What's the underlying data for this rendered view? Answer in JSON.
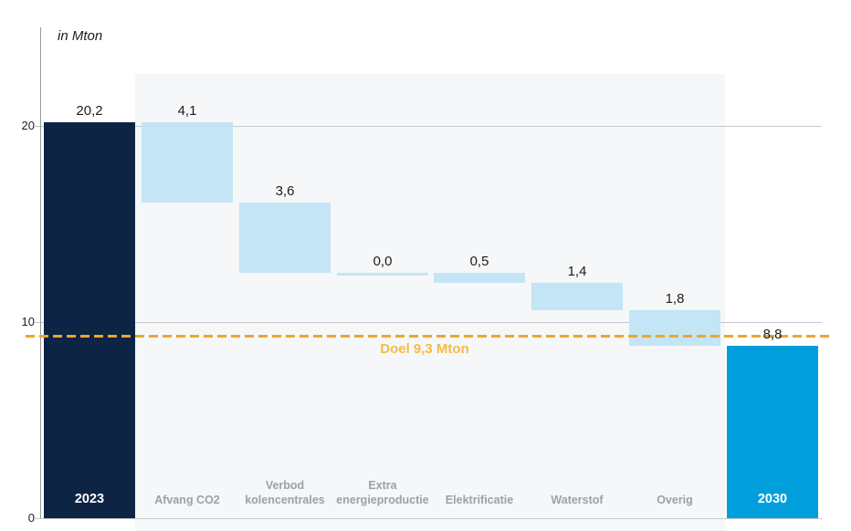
{
  "chart_data": {
    "type": "waterfall",
    "unit_label": "in Mton",
    "y_axis": {
      "range": [
        0,
        25
      ],
      "ticks": [
        {
          "value": 20,
          "label": "20"
        },
        {
          "value": 10,
          "label": "10"
        },
        {
          "value": 0,
          "label": "0"
        }
      ]
    },
    "columns": [
      {
        "category": "2023",
        "role": "start",
        "value": 20.2,
        "display_value": "20,2"
      },
      {
        "category": "Afvang CO2",
        "role": "decrease",
        "delta": 4.1,
        "display_value": "4,1"
      },
      {
        "category": "Verbod kolencentrales",
        "role": "decrease",
        "delta": 3.6,
        "display_value": "3,6"
      },
      {
        "category": "Extra energieproductie",
        "role": "decrease",
        "delta": 0.0,
        "display_value": "0,0"
      },
      {
        "category": "Elektrificatie",
        "role": "decrease",
        "delta": 0.5,
        "display_value": "0,5"
      },
      {
        "category": "Waterstof",
        "role": "decrease",
        "delta": 1.4,
        "display_value": "1,4"
      },
      {
        "category": "Overig",
        "role": "decrease",
        "delta": 1.8,
        "display_value": "1,8"
      },
      {
        "category": "2030",
        "role": "end",
        "value": 8.8,
        "display_value": "8,8"
      }
    ],
    "target_line": {
      "value": 9.3,
      "label": "Doel 9,3 Mton",
      "style": "dashed"
    },
    "colors": {
      "start_bar": "#0D2445",
      "decrease_bar": "#C4E5F5",
      "end_bar": "#009FDB",
      "plot_background": "#F5F7F9",
      "gridline": "#C6C9CC",
      "axis_line": "#98999B",
      "target_line": "#F0A42E",
      "target_label": "#F7BB45",
      "value_label": "#1D1D1B",
      "category_label": "#9CA1A7"
    }
  }
}
